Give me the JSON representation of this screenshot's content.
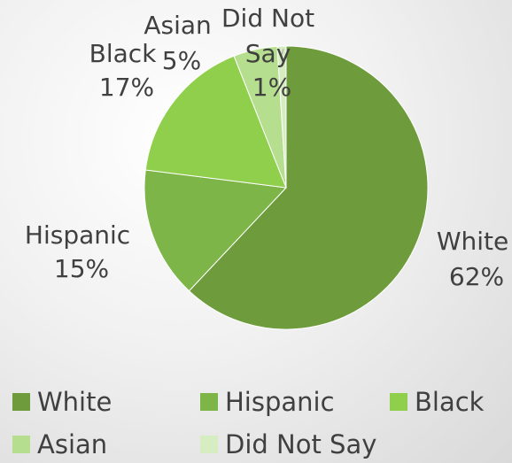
{
  "chart_data": {
    "type": "pie",
    "categories": [
      "White",
      "Hispanic",
      "Black",
      "Asian",
      "Did Not Say"
    ],
    "values": [
      62,
      15,
      17,
      5,
      1
    ],
    "value_labels": [
      "62%",
      "15%",
      "17%",
      "5%",
      "1%"
    ],
    "colors": [
      "#6e9b3c",
      "#7eb548",
      "#8fcf4c",
      "#b5df8e",
      "#d5edc0"
    ],
    "legend_position": "bottom"
  },
  "slice_labels": [
    {
      "lines": [
        "White",
        "62%"
      ]
    },
    {
      "lines": [
        "Hispanic",
        "15%"
      ]
    },
    {
      "lines": [
        "Black",
        "17%"
      ]
    },
    {
      "lines": [
        "Asian",
        "5%"
      ]
    },
    {
      "lines": [
        "Did Not",
        "Say",
        "1%"
      ]
    }
  ],
  "legend": {
    "items": [
      {
        "label": "White",
        "color": "#6e9b3c"
      },
      {
        "label": "Hispanic",
        "color": "#7eb548"
      },
      {
        "label": "Black",
        "color": "#8fcf4c"
      },
      {
        "label": "Asian",
        "color": "#b5df8e"
      },
      {
        "label": "Did Not Say",
        "color": "#d5edc0"
      }
    ]
  }
}
